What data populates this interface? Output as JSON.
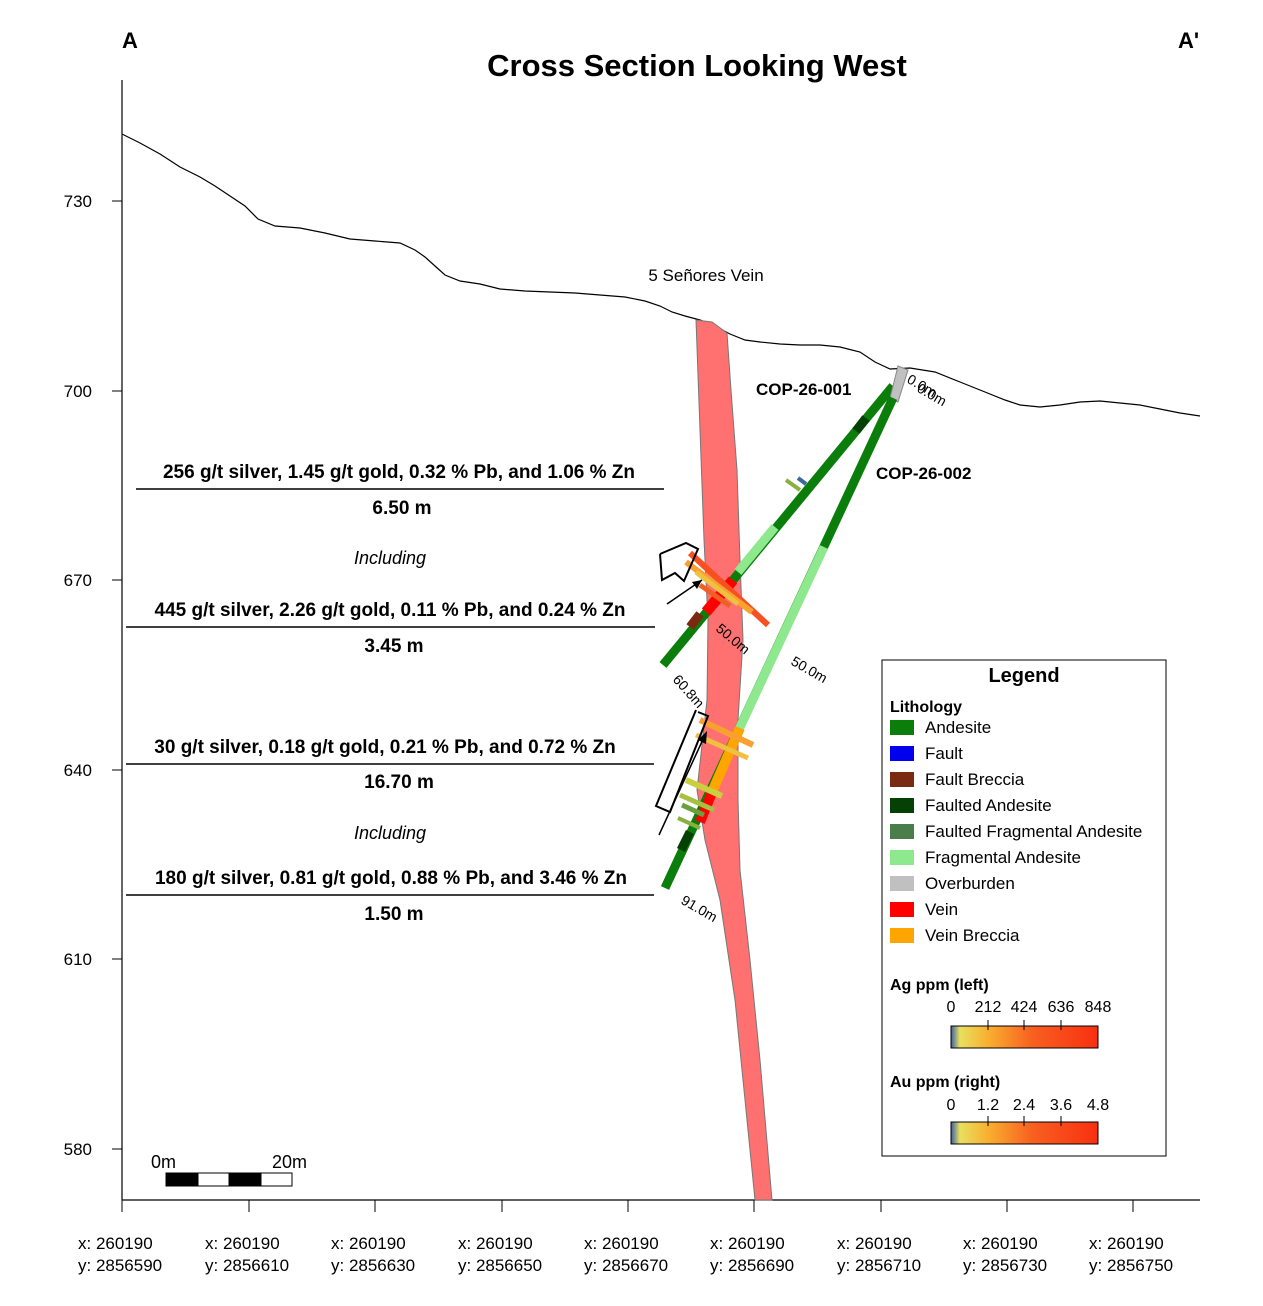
{
  "title": "Cross Section Looking West",
  "corner_left": "A",
  "corner_right": "A'",
  "vein_name": "5 Señores Vein",
  "y_axis": {
    "ticks": [
      "730",
      "700",
      "670",
      "640",
      "610",
      "580"
    ]
  },
  "x_axis": {
    "ticks": [
      {
        "x": "x: 260190",
        "y": "y: 2856590"
      },
      {
        "x": "x: 260190",
        "y": "y: 2856610"
      },
      {
        "x": "x: 260190",
        "y": "y: 2856630"
      },
      {
        "x": "x: 260190",
        "y": "y: 2856650"
      },
      {
        "x": "x: 260190",
        "y": "y: 2856670"
      },
      {
        "x": "x: 260190",
        "y": "y: 2856690"
      },
      {
        "x": "x: 260190",
        "y": "y: 2856710"
      },
      {
        "x": "x: 260190",
        "y": "y: 2856730"
      },
      {
        "x": "x: 260190",
        "y": "y: 2856750"
      }
    ]
  },
  "drillholes": [
    {
      "name": "COP-26-001",
      "collar_label": "0.0m",
      "mid_label": "50.0m",
      "end_label": "60.8m"
    },
    {
      "name": "COP-26-002",
      "collar_label": "0.0m",
      "mid_label": "50.0m",
      "end_label": "91.0m"
    }
  ],
  "intercepts": {
    "upper_main": "256 g/t silver, 1.45 g/t gold, 0.32 % Pb, and 1.06 % Zn",
    "upper_main_width": "6.50 m",
    "upper_including": "Including",
    "upper_sub": "445 g/t silver, 2.26 g/t gold, 0.11 % Pb, and 0.24 % Zn",
    "upper_sub_width": "3.45 m",
    "lower_main": "30 g/t silver, 0.18 g/t gold, 0.21 % Pb, and 0.72 % Zn",
    "lower_main_width": "16.70 m",
    "lower_including": "Including",
    "lower_sub": "180 g/t silver, 0.81 g/t gold, 0.88 % Pb, and 3.46 % Zn",
    "lower_sub_width": "1.50 m"
  },
  "scale_bar": {
    "start": "0m",
    "end": "20m"
  },
  "legend": {
    "title": "Legend",
    "lithology_heading": "Lithology",
    "items": [
      {
        "label": "Andesite",
        "color": "#0a7d0a"
      },
      {
        "label": "Fault",
        "color": "#0000ee"
      },
      {
        "label": "Fault Breccia",
        "color": "#7a2a10"
      },
      {
        "label": "Faulted Andesite",
        "color": "#054005"
      },
      {
        "label": "Faulted Fragmental Andesite",
        "color": "#4a7d4a"
      },
      {
        "label": "Fragmental Andesite",
        "color": "#8ee88e"
      },
      {
        "label": "Overburden",
        "color": "#c0c0c0"
      },
      {
        "label": "Vein",
        "color": "#ff0000"
      },
      {
        "label": "Vein Breccia",
        "color": "#ffa500"
      }
    ],
    "ag_heading": "Ag ppm (left)",
    "ag_ticks": [
      "0",
      "212",
      "424",
      "636",
      "848"
    ],
    "au_heading": "Au ppm (right)",
    "au_ticks": [
      "0",
      "1.2",
      "2.4",
      "3.6",
      "4.8"
    ]
  },
  "colors": {
    "vein_fill": "#ff7070",
    "andesite": "#0a7d0a",
    "fragmental": "#8ee88e",
    "faulted_andesite": "#054005",
    "overburden": "#c0c0c0",
    "vein": "#ff0000",
    "vein_breccia": "#ffa500"
  }
}
